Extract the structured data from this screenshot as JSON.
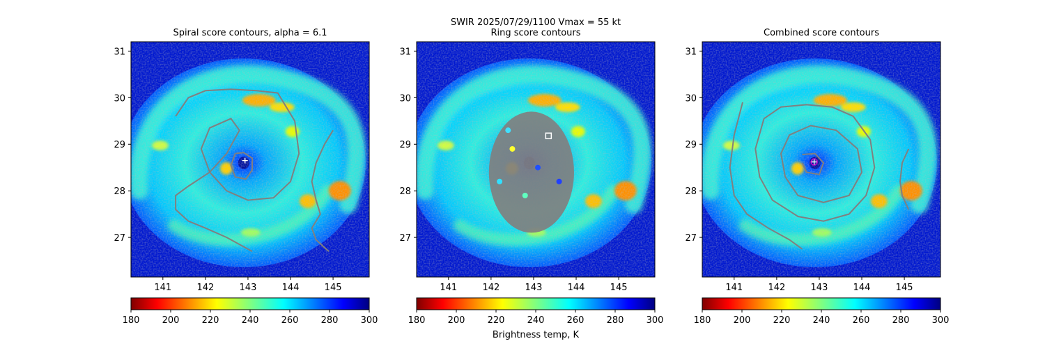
{
  "figure": {
    "suptitle_line1": "SWIR  2025/07/29/1100    Vmax = 55 kt",
    "colorbar_label": "Brightness temp, K"
  },
  "chart_data": [
    {
      "type": "heatmap",
      "title": "Spiral score contours, alpha =  6.1",
      "xlim": [
        140.25,
        145.85
      ],
      "ylim": [
        26.15,
        31.2
      ],
      "xticks": [
        141,
        142,
        143,
        144,
        145
      ],
      "yticks": [
        27,
        28,
        29,
        30,
        31
      ],
      "center_marker": {
        "type": "plus",
        "x": 142.93,
        "y": 28.65
      },
      "contour_color": "#808080",
      "contours": [
        {
          "x": [
            142.7,
            142.9,
            143.1,
            143.1,
            142.95,
            142.7,
            142.6,
            142.7
          ],
          "y": [
            28.8,
            28.82,
            28.7,
            28.45,
            28.25,
            28.3,
            28.55,
            28.8
          ]
        },
        {
          "x": [
            141.3,
            141.6,
            142.0,
            142.6,
            143.2,
            143.7,
            144.1,
            144.2,
            144.0,
            143.6,
            143.0,
            142.5,
            142.1,
            141.9,
            142.1,
            142.6,
            142.8,
            142.5,
            142.1,
            141.6,
            141.3,
            141.3,
            141.6,
            142.0,
            142.5,
            143.1
          ],
          "y": [
            29.6,
            30.0,
            30.15,
            30.18,
            30.15,
            30.1,
            29.5,
            28.8,
            28.2,
            27.85,
            27.8,
            28.0,
            28.4,
            28.9,
            29.35,
            29.55,
            29.3,
            28.8,
            28.4,
            28.1,
            27.9,
            27.6,
            27.35,
            27.2,
            27.0,
            26.7
          ]
        },
        {
          "x": [
            145.0,
            144.8,
            144.6,
            144.5,
            144.6,
            144.7,
            144.5,
            144.6,
            144.9
          ],
          "y": [
            29.3,
            29.0,
            28.6,
            28.2,
            27.8,
            27.5,
            27.2,
            26.95,
            26.7
          ]
        }
      ]
    },
    {
      "type": "heatmap",
      "title": "Ring score contours",
      "xlim": [
        140.25,
        145.85
      ],
      "ylim": [
        26.15,
        31.2
      ],
      "xticks": [
        141,
        142,
        143,
        144,
        145
      ],
      "yticks": [
        27,
        28,
        29,
        30,
        31
      ],
      "center_marker": {
        "type": "square",
        "x": 143.35,
        "y": 29.18
      },
      "ring_region": {
        "cx": 142.95,
        "cy": 28.4,
        "rx": 1.0,
        "ry": 1.3,
        "color": "#808080"
      }
    },
    {
      "type": "heatmap",
      "title": "Combined score contours",
      "xlim": [
        140.25,
        145.85
      ],
      "ylim": [
        26.15,
        31.2
      ],
      "xticks": [
        141,
        142,
        143,
        144,
        145
      ],
      "yticks": [
        27,
        28,
        29,
        30,
        31
      ],
      "center_marker": {
        "type": "circle-plus",
        "x": 142.88,
        "y": 28.62,
        "color": "#cc00cc"
      },
      "contour_color": "#808080",
      "contours": [
        {
          "x": [
            142.6,
            142.9,
            143.1,
            143.0,
            142.7,
            142.6
          ],
          "y": [
            28.78,
            28.8,
            28.6,
            28.35,
            28.4,
            28.6
          ]
        },
        {
          "x": [
            142.3,
            142.8,
            143.4,
            143.9,
            144.0,
            143.7,
            143.1,
            142.5,
            142.2,
            142.1,
            142.3,
            142.8,
            143.4,
            143.9
          ],
          "y": [
            29.2,
            29.4,
            29.3,
            28.9,
            28.4,
            27.9,
            27.75,
            27.9,
            28.3,
            28.8,
            29.2,
            29.4,
            29.3,
            28.9
          ]
        },
        {
          "x": [
            141.7,
            142.1,
            142.7,
            143.3,
            143.8,
            144.2,
            144.3,
            144.1,
            143.7,
            143.1,
            142.5,
            141.9,
            141.6,
            141.5,
            141.7
          ],
          "y": [
            29.55,
            29.8,
            29.85,
            29.8,
            29.6,
            29.1,
            28.5,
            27.9,
            27.5,
            27.35,
            27.45,
            27.8,
            28.3,
            28.9,
            29.55
          ]
        },
        {
          "x": [
            141.2,
            141.0,
            140.9,
            141.0,
            141.3,
            141.8,
            142.3,
            142.6
          ],
          "y": [
            29.9,
            29.2,
            28.5,
            27.9,
            27.5,
            27.2,
            26.95,
            26.75
          ]
        },
        {
          "x": [
            145.1,
            144.95,
            144.9,
            144.95,
            145.1
          ],
          "y": [
            28.9,
            28.6,
            28.2,
            27.9,
            27.6
          ]
        }
      ]
    }
  ],
  "colorbar": {
    "cmap": "jet_r",
    "range": [
      180,
      300
    ],
    "ticks": [
      180,
      200,
      220,
      240,
      260,
      280,
      300
    ]
  }
}
